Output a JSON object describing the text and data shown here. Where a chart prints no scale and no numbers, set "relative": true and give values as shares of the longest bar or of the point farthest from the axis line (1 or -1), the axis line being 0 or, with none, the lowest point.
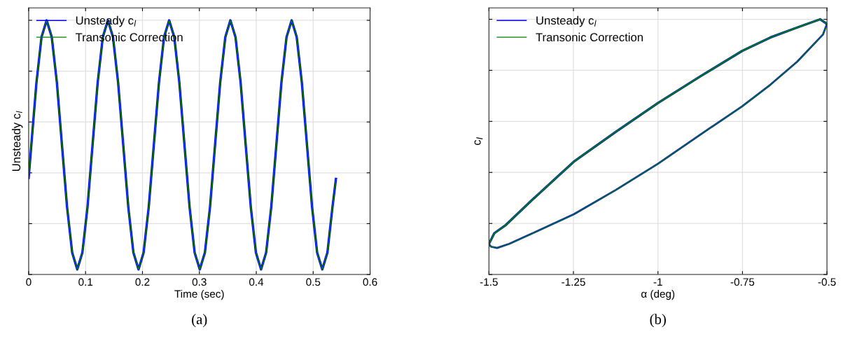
{
  "chart_data": [
    {
      "type": "line",
      "xlabel": "Time (sec)",
      "ylabel": "Unsteady c$_{l}$",
      "relative": true,
      "xlim": [
        0,
        0.6
      ],
      "xticks": [
        0,
        0.1,
        0.2,
        0.3,
        0.4,
        0.5,
        0.6
      ],
      "tick_labels": "x",
      "grid": true,
      "legend": "top left",
      "annotations": [
        "(a)"
      ],
      "x": [
        0,
        0.0047,
        0.0137,
        0.0226,
        0.0316,
        0.0406,
        0.0496,
        0.0585,
        0.0675,
        0.0765,
        0.0854,
        0.0944,
        0.1034,
        0.1123,
        0.1213,
        0.1303,
        0.1393,
        0.1482,
        0.1572,
        0.1662,
        0.1751,
        0.1841,
        0.1931,
        0.202,
        0.211,
        0.22,
        0.229,
        0.2379,
        0.2469,
        0.2559,
        0.2648,
        0.2738,
        0.2828,
        0.2917,
        0.3007,
        0.3097,
        0.3187,
        0.3276,
        0.3366,
        0.3456,
        0.3545,
        0.3635,
        0.3725,
        0.3814,
        0.3904,
        0.3994,
        0.4084,
        0.4173,
        0.4263,
        0.4353,
        0.4442,
        0.4532,
        0.4622,
        0.4711,
        0.4801,
        0.4891,
        0.4981,
        0.507,
        0.516,
        0.525,
        0.5339,
        0.54
      ],
      "series": [
        {
          "name": "Unsteady c$_{l}$",
          "color": "#0000ff",
          "values": [
            0.38,
            0.51,
            0.755,
            0.934,
            1,
            0.934,
            0.755,
            0.51,
            0.265,
            0.086,
            0.02,
            0.086,
            0.265,
            0.51,
            0.755,
            0.934,
            1,
            0.934,
            0.755,
            0.51,
            0.265,
            0.086,
            0.02,
            0.086,
            0.265,
            0.51,
            0.755,
            0.934,
            1,
            0.934,
            0.755,
            0.51,
            0.265,
            0.086,
            0.02,
            0.086,
            0.265,
            0.51,
            0.755,
            0.934,
            1,
            0.934,
            0.755,
            0.51,
            0.265,
            0.086,
            0.02,
            0.086,
            0.265,
            0.51,
            0.755,
            0.934,
            1,
            0.934,
            0.755,
            0.51,
            0.265,
            0.086,
            0.02,
            0.086,
            0.265,
            0.376
          ]
        },
        {
          "name": "Transonic Correction",
          "color": "#008000",
          "values": [
            0.38,
            0.51,
            0.755,
            0.934,
            1,
            0.934,
            0.755,
            0.51,
            0.265,
            0.086,
            0.02,
            0.086,
            0.265,
            0.51,
            0.755,
            0.934,
            1,
            0.934,
            0.755,
            0.51,
            0.265,
            0.086,
            0.02,
            0.086,
            0.265,
            0.51,
            0.755,
            0.934,
            1,
            0.934,
            0.755,
            0.51,
            0.265,
            0.086,
            0.02,
            0.086,
            0.265,
            0.51,
            0.755,
            0.934,
            1,
            0.934,
            0.755,
            0.51,
            0.265,
            0.086,
            0.02,
            0.086,
            0.265,
            0.51,
            0.755,
            0.934,
            1,
            0.934,
            0.755,
            0.51,
            0.265,
            0.086,
            0.02,
            0.086,
            0.265,
            0.376
          ]
        }
      ]
    },
    {
      "type": "line",
      "xlabel": "α (deg)",
      "ylabel": "c$_{l}$",
      "relative": true,
      "xlim": [
        -1.5,
        -0.5
      ],
      "xticks": [
        -1.5,
        -1.25,
        -1,
        -0.75,
        -0.5
      ],
      "tick_labels": "x",
      "grid": true,
      "legend": "top left",
      "annotations": [
        "(b)"
      ],
      "series": [
        {
          "name": "Unsteady c$_{l}$",
          "color": "#0000ff",
          "x": [
            -1.5,
            -1.484,
            -1.45,
            -1.375,
            -1.249,
            -1.125,
            -1.0,
            -0.875,
            -0.751,
            -0.667,
            -0.588,
            -0.52,
            -0.5
          ],
          "values": [
            0.12,
            0.162,
            0.194,
            0.289,
            0.442,
            0.559,
            0.672,
            0.776,
            0.876,
            0.929,
            0.968,
            1.0,
            0.982
          ]
        },
        {
          "color": "#0000ff",
          "x": [
            -1.5,
            -1.494,
            -1.476,
            -1.44,
            -1.375,
            -1.249,
            -1.125,
            -1.0,
            -0.875,
            -0.751,
            -0.667,
            -0.588,
            -0.512,
            -0.5
          ],
          "values": [
            0.12,
            0.109,
            0.104,
            0.12,
            0.159,
            0.236,
            0.331,
            0.434,
            0.548,
            0.659,
            0.744,
            0.834,
            0.94,
            0.982
          ]
        },
        {
          "name": "Transonic Correction",
          "color": "#008000",
          "x": [
            -1.5,
            -1.484,
            -1.45,
            -1.375,
            -1.249,
            -1.125,
            -1.0,
            -0.875,
            -0.751,
            -0.667,
            -0.588,
            -0.52,
            -0.5
          ],
          "values": [
            0.12,
            0.162,
            0.194,
            0.289,
            0.442,
            0.559,
            0.672,
            0.776,
            0.876,
            0.929,
            0.968,
            1.0,
            0.982
          ]
        },
        {
          "color": "#008000",
          "x": [
            -1.5,
            -1.494,
            -1.476,
            -1.44,
            -1.375,
            -1.249,
            -1.125,
            -1.0,
            -0.875,
            -0.751,
            -0.667,
            -0.588,
            -0.512,
            -0.5
          ],
          "values": [
            0.12,
            0.109,
            0.104,
            0.12,
            0.159,
            0.236,
            0.331,
            0.434,
            0.548,
            0.659,
            0.744,
            0.834,
            0.94,
            0.982
          ]
        }
      ]
    }
  ]
}
